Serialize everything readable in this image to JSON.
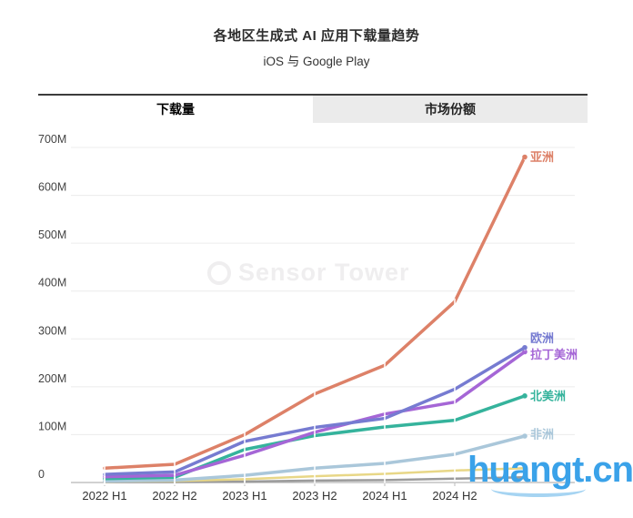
{
  "title": "各地区生成式 AI 应用下载量趋势",
  "subtitle": "iOS 与 Google Play",
  "tabs": [
    {
      "label": "下载量",
      "active": true
    },
    {
      "label": "市场份额",
      "active": false
    }
  ],
  "watermarks": {
    "sensor_tower": "Sensor Tower",
    "site": "huangt.cn",
    "site_color": "#3aa2e9"
  },
  "chart_data": {
    "type": "line",
    "title": "各地区生成式 AI 应用下载量趋势",
    "subtitle": "iOS 与 Google Play",
    "categories": [
      "2022 H1",
      "2022 H2",
      "2023 H1",
      "2023 H2",
      "2024 H1",
      "2024 H2"
    ],
    "num_points": 7,
    "unlabeled_final_point": true,
    "grid": true,
    "legend_position": "right-end-labels",
    "ylim": [
      0,
      700
    ],
    "y_axis": {
      "unit": "M",
      "tick_labels": [
        "0",
        "100M",
        "200M",
        "300M",
        "400M",
        "500M",
        "600M",
        "700M"
      ],
      "tick_values": [
        0,
        100,
        200,
        300,
        400,
        500,
        600,
        700
      ]
    },
    "series": [
      {
        "name": "亚洲",
        "color": "#dd8168",
        "label_visible": true,
        "values": [
          30,
          38,
          100,
          185,
          245,
          378,
          680
        ]
      },
      {
        "name": "欧洲",
        "color": "#767bd1",
        "label_visible": true,
        "values": [
          17,
          22,
          86,
          115,
          134,
          195,
          282
        ]
      },
      {
        "name": "拉丁美洲",
        "color": "#a566d6",
        "label_visible": true,
        "values": [
          12,
          15,
          57,
          105,
          143,
          168,
          273
        ]
      },
      {
        "name": "北美洲",
        "color": "#35b39c",
        "label_visible": true,
        "values": [
          8,
          11,
          69,
          98,
          116,
          130,
          181
        ]
      },
      {
        "name": "非洲",
        "color": "#aac7da",
        "label_visible": true,
        "values": [
          3,
          5,
          15,
          30,
          40,
          59,
          97
        ]
      },
      {
        "name": "",
        "color": "#e8d787",
        "label_visible": false,
        "values": [
          2,
          3,
          7,
          13,
          18,
          25,
          30
        ]
      },
      {
        "name": "",
        "color": "#9b9b9b",
        "label_visible": false,
        "values": [
          1,
          1,
          2,
          4,
          5,
          8,
          11
        ]
      }
    ]
  }
}
